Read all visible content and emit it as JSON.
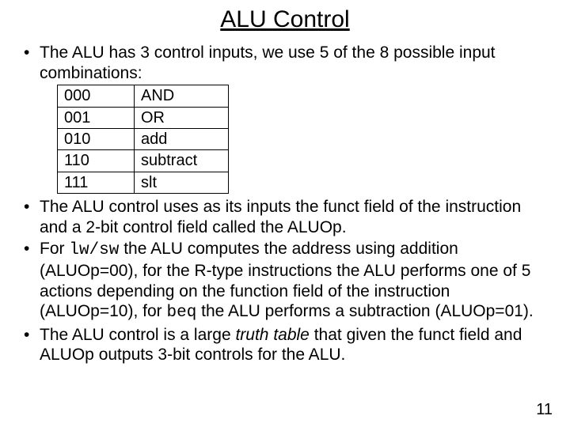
{
  "title": "ALU Control",
  "bullets": {
    "b1": "The ALU has 3 control inputs, we use 5 of the 8 possible input combinations:",
    "b2_a": "The ALU control uses as its inputs the funct field of the instruction and a 2-bit control field called the ALUOp.",
    "b3_a": "For ",
    "b3_code": "lw/sw",
    "b3_b": " the ALU computes the address using addition (ALUOp=00), for the R-type instructions the ALU performs one of 5 actions depending on the function field of the instruction (ALUOp=10), for ",
    "b3_code2": "beq",
    "b3_c": " the ALU performs a subtraction (ALUOp=01).",
    "b4_a": "The ALU control is a large ",
    "b4_em": "truth table",
    "b4_b": " that given the funct field and ALUOp outputs 3-bit controls for the ALU."
  },
  "table": {
    "r0": {
      "code": "000",
      "op": "AND"
    },
    "r1": {
      "code": "001",
      "op": "OR"
    },
    "r2": {
      "code": "010",
      "op": "add"
    },
    "r3": {
      "code": "110",
      "op": "subtract"
    },
    "r4": {
      "code": "111",
      "op": "slt"
    }
  },
  "page_number": "11"
}
